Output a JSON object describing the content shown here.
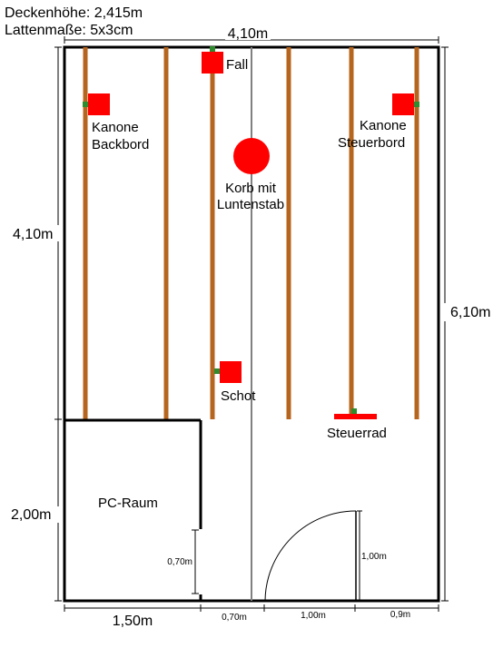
{
  "header": {
    "ceiling_height": "Deckenhöhe: 2,415m",
    "batten_size": "Lattenmaße: 5x3cm"
  },
  "dimensions": {
    "top_width": "4,10m",
    "left_upper": "4,10m",
    "left_lower": "2,00m",
    "right_total": "6,10m",
    "bottom_pc": "1,50m",
    "bottom_gap": "0,70m",
    "bottom_door": "1,00m",
    "bottom_right": "0,9m",
    "pc_wall_opening": "0,70m",
    "door_height": "1,00m"
  },
  "objects": {
    "fall": "Fall",
    "cannon_port_line1": "Kanone",
    "cannon_port_line2": "Backbord",
    "cannon_starboard_line1": "Kanone",
    "cannon_starboard_line2": "Steuerbord",
    "basket_line1": "Korb mit",
    "basket_line2": "Luntenstab",
    "schot": "Schot",
    "wheel": "Steuerrad"
  },
  "rooms": {
    "pc_room": "PC-Raum"
  },
  "colors": {
    "batten": "#b5651d",
    "object": "#ff0000",
    "attachment": "#2e8b2e",
    "wall": "#000000",
    "center_line": "#808080"
  }
}
